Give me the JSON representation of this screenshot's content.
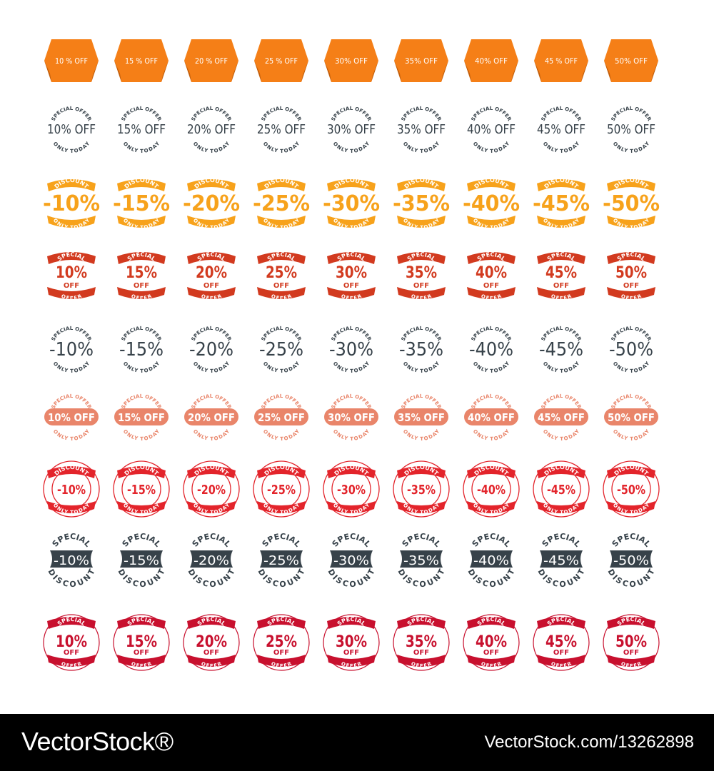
{
  "columns": [
    "10",
    "15",
    "20",
    "25",
    "30",
    "35",
    "40",
    "45",
    "50"
  ],
  "rows": [
    {
      "style": "orange-tag",
      "colors": {
        "main": "#f57f17",
        "fold": "#c05e0c",
        "text": "#ffffff"
      },
      "labels": [
        "10 % OFF",
        "15 % OFF",
        "20 % OFF",
        "25 % OFF",
        "30% OFF",
        "35% OFF",
        "40% OFF",
        "45 % OFF",
        "50% OFF"
      ]
    },
    {
      "style": "arc-text-dark",
      "colors": {
        "main": "#37424a"
      },
      "top": "SPECIAL OFFER",
      "bottom": "ONLY TODAY",
      "labels": [
        "10% OFF",
        "15% OFF",
        "20% OFF",
        "25% OFF",
        "30% OFF",
        "35% OFF",
        "40% OFF",
        "45% OFF",
        "50% OFF"
      ]
    },
    {
      "style": "discount-gold",
      "colors": {
        "main": "#f7a21b",
        "ribbon_text": "#ffffff"
      },
      "top": "DISCOUNT",
      "bottom": "ONLY TODAY",
      "labels": [
        "-10%",
        "-15%",
        "-20%",
        "-25%",
        "-30%",
        "-35%",
        "-40%",
        "-45%",
        "-50%"
      ]
    },
    {
      "style": "special-red-ribbon",
      "colors": {
        "main": "#d23a1f",
        "ribbon_text": "#ffffff"
      },
      "top": "SPECIAL",
      "middle": "OFF",
      "bottom": "OFFER",
      "labels": [
        "10%",
        "15%",
        "20%",
        "25%",
        "30%",
        "35%",
        "40%",
        "45%",
        "50%"
      ]
    },
    {
      "style": "arc-text-dark-minus",
      "colors": {
        "main": "#37424a"
      },
      "top": "SPECIAL OFFER",
      "bottom": "ONLY TODAY",
      "labels": [
        "-10%",
        "-15%",
        "-20%",
        "-25%",
        "-30%",
        "-35%",
        "-40%",
        "-45%",
        "-50%"
      ]
    },
    {
      "style": "salmon-pill",
      "colors": {
        "main": "#e9856a",
        "text": "#ffffff"
      },
      "top": "SPECIAL OFFER",
      "bottom": "ONLY TODAY",
      "labels": [
        "10% OFF",
        "15% OFF",
        "20% OFF",
        "25% OFF",
        "30% OFF",
        "35% OFF",
        "40% OFF",
        "45% OFF",
        "50% OFF"
      ]
    },
    {
      "style": "red-ring-discount",
      "colors": {
        "main": "#e3242b",
        "ribbon_text": "#ffffff"
      },
      "top": "DISCOUNT",
      "bottom": "ONLY TODAY",
      "labels": [
        "-10%",
        "-15%",
        "-20%",
        "-25%",
        "-30%",
        "-35%",
        "-40%",
        "-45%",
        "-50%"
      ]
    },
    {
      "style": "dark-plaque",
      "colors": {
        "main": "#37424a",
        "text": "#ffffff"
      },
      "top": "SPECIAL",
      "bottom": "DISCOUNT",
      "labels": [
        "-10%",
        "-15%",
        "-20%",
        "-25%",
        "-30%",
        "-35%",
        "-40%",
        "-45%",
        "-50%"
      ]
    },
    {
      "style": "red-ring-special",
      "colors": {
        "main": "#c8102e",
        "ribbon_text": "#ffffff"
      },
      "top": "SPECIAL",
      "middle": "OFF",
      "bottom": "OFFER",
      "labels": [
        "10%",
        "15%",
        "20%",
        "25%",
        "30%",
        "35%",
        "40%",
        "45%",
        "50%"
      ]
    }
  ],
  "footer": {
    "logo": "VectorStock®",
    "ref": "VectorStock.com/13262898"
  }
}
